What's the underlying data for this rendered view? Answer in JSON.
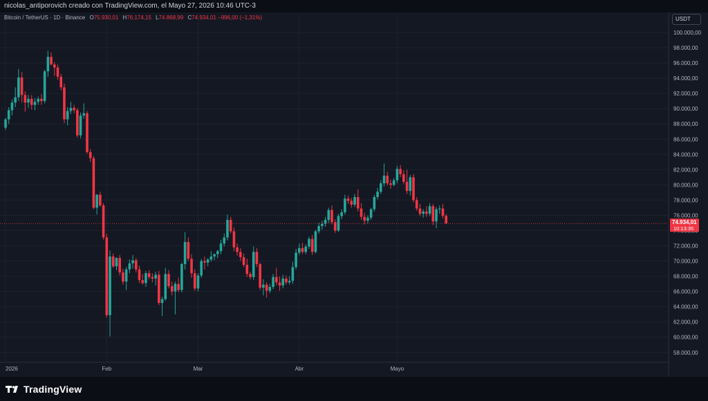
{
  "header": {
    "attribution": "nicolas_antiporovich creado con TradingView.com, el Mayo 27, 2026 10:46 UTC-3"
  },
  "legend": {
    "symbol": "Bitcoin / TetherUS · 1D · Binance",
    "open_label": "O",
    "open": "75.930,01",
    "high_label": "H",
    "high": "76.174,15",
    "low_label": "L",
    "low": "74.868,99",
    "close_label": "C",
    "close": "74.934,01",
    "change": "−996,00 (−1,31%)"
  },
  "currency_button": {
    "label": "USDT"
  },
  "price_tag": {
    "value": "74.934,01",
    "countdown": "10:13:35"
  },
  "footer": {
    "brand": "TradingView"
  },
  "colors": {
    "up": "#26a69a",
    "down": "#f23645",
    "background": "#131722",
    "grid": "#1e222d",
    "axis_text": "#b2b5be"
  },
  "chart_data": {
    "type": "candlestick",
    "symbol": "BTCUSDT",
    "timeframe": "1D",
    "y_axis": {
      "position": "right",
      "ylim": [
        56800,
        101000
      ],
      "ticks": [
        58000,
        60000,
        62000,
        64000,
        66000,
        68000,
        70000,
        72000,
        74000,
        76000,
        78000,
        80000,
        82000,
        84000,
        86000,
        88000,
        90000,
        92000,
        94000,
        96000,
        98000,
        100000
      ],
      "tick_labels": [
        "58.000,00",
        "60.000,00",
        "62.000,00",
        "64.000,00",
        "66.000,00",
        "68.000,00",
        "70.000,00",
        "72.000,00",
        "74.000,00",
        "76.000,00",
        "78.000,00",
        "80.000,00",
        "82.000,00",
        "84.000,00",
        "86.000,00",
        "88.000,00",
        "90.000,00",
        "92.000,00",
        "94.000,00",
        "96.000,00",
        "98.000,00",
        "100.000,00"
      ]
    },
    "x_axis": {
      "tick_labels": [
        {
          "label": "2026",
          "index": 0
        },
        {
          "label": "Feb",
          "index": 31
        },
        {
          "label": "Mar",
          "index": 59
        },
        {
          "label": "Abr",
          "index": 90
        },
        {
          "label": "Mayo",
          "index": 120
        }
      ]
    },
    "grid": true,
    "candles": [
      {
        "o": 87500,
        "h": 88800,
        "l": 87200,
        "c": 88600
      },
      {
        "o": 88600,
        "h": 90200,
        "l": 88000,
        "c": 89800
      },
      {
        "o": 89800,
        "h": 91200,
        "l": 89100,
        "c": 90800
      },
      {
        "o": 90800,
        "h": 92800,
        "l": 90200,
        "c": 91500
      },
      {
        "o": 91500,
        "h": 95200,
        "l": 91000,
        "c": 94100
      },
      {
        "o": 94100,
        "h": 94800,
        "l": 90800,
        "c": 91800
      },
      {
        "o": 91800,
        "h": 92300,
        "l": 89600,
        "c": 90800
      },
      {
        "o": 90800,
        "h": 91800,
        "l": 90100,
        "c": 91300
      },
      {
        "o": 91300,
        "h": 91800,
        "l": 89900,
        "c": 90500
      },
      {
        "o": 90500,
        "h": 91400,
        "l": 89800,
        "c": 90900
      },
      {
        "o": 90900,
        "h": 91600,
        "l": 90500,
        "c": 91300
      },
      {
        "o": 91300,
        "h": 91900,
        "l": 90500,
        "c": 91000
      },
      {
        "o": 91000,
        "h": 95100,
        "l": 90700,
        "c": 94900
      },
      {
        "o": 94900,
        "h": 97600,
        "l": 94200,
        "c": 96800
      },
      {
        "o": 96800,
        "h": 97400,
        "l": 95700,
        "c": 95800
      },
      {
        "o": 95800,
        "h": 96100,
        "l": 94300,
        "c": 95400
      },
      {
        "o": 95400,
        "h": 95800,
        "l": 93800,
        "c": 94200
      },
      {
        "o": 94200,
        "h": 94600,
        "l": 92400,
        "c": 92800
      },
      {
        "o": 92800,
        "h": 93300,
        "l": 88100,
        "c": 88600
      },
      {
        "o": 88600,
        "h": 90200,
        "l": 87800,
        "c": 89700
      },
      {
        "o": 89700,
        "h": 90900,
        "l": 89300,
        "c": 90100
      },
      {
        "o": 90100,
        "h": 90500,
        "l": 89400,
        "c": 89800
      },
      {
        "o": 89800,
        "h": 90100,
        "l": 86200,
        "c": 86500
      },
      {
        "o": 86500,
        "h": 89500,
        "l": 86100,
        "c": 89100
      },
      {
        "o": 89100,
        "h": 90700,
        "l": 88700,
        "c": 89400
      },
      {
        "o": 89400,
        "h": 89700,
        "l": 84100,
        "c": 84300
      },
      {
        "o": 84300,
        "h": 84700,
        "l": 83000,
        "c": 83500
      },
      {
        "o": 83500,
        "h": 83800,
        "l": 76800,
        "c": 77000
      },
      {
        "o": 77000,
        "h": 78800,
        "l": 76100,
        "c": 78700
      },
      {
        "o": 78700,
        "h": 79100,
        "l": 77100,
        "c": 77300
      },
      {
        "o": 77300,
        "h": 77600,
        "l": 72800,
        "c": 73100
      },
      {
        "o": 73100,
        "h": 73600,
        "l": 62600,
        "c": 62900
      },
      {
        "o": 62900,
        "h": 71400,
        "l": 60100,
        "c": 70600
      },
      {
        "o": 70600,
        "h": 71000,
        "l": 69100,
        "c": 69300
      },
      {
        "o": 69300,
        "h": 70500,
        "l": 68800,
        "c": 70400
      },
      {
        "o": 70400,
        "h": 70800,
        "l": 68100,
        "c": 68500
      },
      {
        "o": 68500,
        "h": 69000,
        "l": 66900,
        "c": 67300
      },
      {
        "o": 67300,
        "h": 69200,
        "l": 66200,
        "c": 68900
      },
      {
        "o": 68900,
        "h": 70200,
        "l": 68400,
        "c": 69700
      },
      {
        "o": 69700,
        "h": 70800,
        "l": 69000,
        "c": 70100
      },
      {
        "o": 70100,
        "h": 70400,
        "l": 68500,
        "c": 68900
      },
      {
        "o": 68900,
        "h": 69400,
        "l": 67100,
        "c": 67500
      },
      {
        "o": 67500,
        "h": 68300,
        "l": 66900,
        "c": 67100
      },
      {
        "o": 67100,
        "h": 68700,
        "l": 66600,
        "c": 68400
      },
      {
        "o": 68400,
        "h": 68800,
        "l": 67600,
        "c": 67900
      },
      {
        "o": 67900,
        "h": 68400,
        "l": 67200,
        "c": 67700
      },
      {
        "o": 67700,
        "h": 68600,
        "l": 66800,
        "c": 68200
      },
      {
        "o": 68200,
        "h": 68700,
        "l": 64200,
        "c": 64500
      },
      {
        "o": 64500,
        "h": 65300,
        "l": 62800,
        "c": 65000
      },
      {
        "o": 65000,
        "h": 69100,
        "l": 64800,
        "c": 68300
      },
      {
        "o": 68300,
        "h": 68800,
        "l": 66400,
        "c": 66700
      },
      {
        "o": 66700,
        "h": 67300,
        "l": 65500,
        "c": 66000
      },
      {
        "o": 66000,
        "h": 67300,
        "l": 63000,
        "c": 67000
      },
      {
        "o": 67000,
        "h": 67800,
        "l": 65900,
        "c": 66200
      },
      {
        "o": 66200,
        "h": 69800,
        "l": 65900,
        "c": 69600
      },
      {
        "o": 69600,
        "h": 73800,
        "l": 68900,
        "c": 72500
      },
      {
        "o": 72500,
        "h": 73100,
        "l": 70000,
        "c": 70300
      },
      {
        "o": 70300,
        "h": 70900,
        "l": 67800,
        "c": 68400
      },
      {
        "o": 68400,
        "h": 68900,
        "l": 66100,
        "c": 66400
      },
      {
        "o": 66400,
        "h": 68400,
        "l": 66000,
        "c": 68100
      },
      {
        "o": 68100,
        "h": 70300,
        "l": 67800,
        "c": 70000
      },
      {
        "o": 70000,
        "h": 70600,
        "l": 68900,
        "c": 69800
      },
      {
        "o": 69800,
        "h": 70400,
        "l": 69300,
        "c": 70200
      },
      {
        "o": 70200,
        "h": 71300,
        "l": 69900,
        "c": 70600
      },
      {
        "o": 70600,
        "h": 71000,
        "l": 70100,
        "c": 70900
      },
      {
        "o": 70900,
        "h": 71500,
        "l": 70400,
        "c": 71300
      },
      {
        "o": 71300,
        "h": 72800,
        "l": 70900,
        "c": 72300
      },
      {
        "o": 72300,
        "h": 73600,
        "l": 71900,
        "c": 73100
      },
      {
        "o": 73100,
        "h": 76100,
        "l": 72700,
        "c": 75400
      },
      {
        "o": 75400,
        "h": 75800,
        "l": 73600,
        "c": 73900
      },
      {
        "o": 73900,
        "h": 74400,
        "l": 71300,
        "c": 71800
      },
      {
        "o": 71800,
        "h": 72300,
        "l": 70700,
        "c": 71200
      },
      {
        "o": 71200,
        "h": 71700,
        "l": 70000,
        "c": 70500
      },
      {
        "o": 70500,
        "h": 71000,
        "l": 69200,
        "c": 69500
      },
      {
        "o": 69500,
        "h": 70300,
        "l": 67900,
        "c": 68300
      },
      {
        "o": 68300,
        "h": 68600,
        "l": 67600,
        "c": 67900
      },
      {
        "o": 67900,
        "h": 71900,
        "l": 67500,
        "c": 71200
      },
      {
        "o": 71200,
        "h": 71700,
        "l": 69200,
        "c": 69600
      },
      {
        "o": 69600,
        "h": 69800,
        "l": 66200,
        "c": 66500
      },
      {
        "o": 66500,
        "h": 67600,
        "l": 65500,
        "c": 66900
      },
      {
        "o": 66900,
        "h": 67200,
        "l": 65200,
        "c": 66100
      },
      {
        "o": 66100,
        "h": 67000,
        "l": 65800,
        "c": 66600
      },
      {
        "o": 66600,
        "h": 68300,
        "l": 66300,
        "c": 67900
      },
      {
        "o": 67900,
        "h": 69100,
        "l": 66800,
        "c": 67200
      },
      {
        "o": 67200,
        "h": 68000,
        "l": 66100,
        "c": 66800
      },
      {
        "o": 66800,
        "h": 68200,
        "l": 66400,
        "c": 67700
      },
      {
        "o": 67700,
        "h": 68100,
        "l": 66900,
        "c": 67200
      },
      {
        "o": 67200,
        "h": 68000,
        "l": 66900,
        "c": 67400
      },
      {
        "o": 67400,
        "h": 69900,
        "l": 67000,
        "c": 69200
      },
      {
        "o": 69200,
        "h": 71600,
        "l": 68900,
        "c": 71100
      },
      {
        "o": 71100,
        "h": 72300,
        "l": 70800,
        "c": 71700
      },
      {
        "o": 71700,
        "h": 72400,
        "l": 70900,
        "c": 71200
      },
      {
        "o": 71200,
        "h": 72200,
        "l": 70900,
        "c": 71900
      },
      {
        "o": 71900,
        "h": 73200,
        "l": 71600,
        "c": 72900
      },
      {
        "o": 72900,
        "h": 73400,
        "l": 70800,
        "c": 71200
      },
      {
        "o": 71200,
        "h": 74100,
        "l": 71000,
        "c": 73900
      },
      {
        "o": 73900,
        "h": 75000,
        "l": 73600,
        "c": 74600
      },
      {
        "o": 74600,
        "h": 75300,
        "l": 74100,
        "c": 74900
      },
      {
        "o": 74900,
        "h": 75800,
        "l": 74500,
        "c": 75400
      },
      {
        "o": 75400,
        "h": 77000,
        "l": 75000,
        "c": 76700
      },
      {
        "o": 76700,
        "h": 77300,
        "l": 74800,
        "c": 75100
      },
      {
        "o": 75100,
        "h": 75500,
        "l": 73700,
        "c": 74000
      },
      {
        "o": 74000,
        "h": 76200,
        "l": 73800,
        "c": 75900
      },
      {
        "o": 75900,
        "h": 76800,
        "l": 75500,
        "c": 76400
      },
      {
        "o": 76400,
        "h": 78700,
        "l": 76100,
        "c": 78200
      },
      {
        "o": 78200,
        "h": 78600,
        "l": 77500,
        "c": 77900
      },
      {
        "o": 77900,
        "h": 78300,
        "l": 77000,
        "c": 77400
      },
      {
        "o": 77400,
        "h": 78800,
        "l": 77100,
        "c": 78400
      },
      {
        "o": 78400,
        "h": 79400,
        "l": 76500,
        "c": 76900
      },
      {
        "o": 76900,
        "h": 77600,
        "l": 75400,
        "c": 75800
      },
      {
        "o": 75800,
        "h": 76300,
        "l": 74800,
        "c": 75300
      },
      {
        "o": 75300,
        "h": 76000,
        "l": 74900,
        "c": 75700
      },
      {
        "o": 75700,
        "h": 77000,
        "l": 75400,
        "c": 76800
      },
      {
        "o": 76800,
        "h": 78700,
        "l": 76500,
        "c": 78400
      },
      {
        "o": 78400,
        "h": 79600,
        "l": 78100,
        "c": 79100
      },
      {
        "o": 79100,
        "h": 80600,
        "l": 78800,
        "c": 80200
      },
      {
        "o": 80200,
        "h": 82800,
        "l": 79800,
        "c": 81200
      },
      {
        "o": 81200,
        "h": 81700,
        "l": 79900,
        "c": 80200
      },
      {
        "o": 80200,
        "h": 80700,
        "l": 79500,
        "c": 80000
      },
      {
        "o": 80000,
        "h": 80900,
        "l": 79800,
        "c": 80600
      },
      {
        "o": 80600,
        "h": 82500,
        "l": 80200,
        "c": 82100
      },
      {
        "o": 82100,
        "h": 82600,
        "l": 81000,
        "c": 81400
      },
      {
        "o": 81400,
        "h": 81900,
        "l": 80100,
        "c": 80400
      },
      {
        "o": 80400,
        "h": 82000,
        "l": 78800,
        "c": 79200
      },
      {
        "o": 79200,
        "h": 81300,
        "l": 78600,
        "c": 81000
      },
      {
        "o": 81000,
        "h": 81400,
        "l": 77700,
        "c": 78000
      },
      {
        "o": 78000,
        "h": 78400,
        "l": 76600,
        "c": 76900
      },
      {
        "o": 76900,
        "h": 77500,
        "l": 75900,
        "c": 76200
      },
      {
        "o": 76200,
        "h": 76800,
        "l": 75700,
        "c": 76500
      },
      {
        "o": 76500,
        "h": 77200,
        "l": 75800,
        "c": 76200
      },
      {
        "o": 76200,
        "h": 77600,
        "l": 75900,
        "c": 77200
      },
      {
        "o": 77200,
        "h": 77500,
        "l": 74700,
        "c": 75200
      },
      {
        "o": 75200,
        "h": 77100,
        "l": 74300,
        "c": 76800
      },
      {
        "o": 76800,
        "h": 77300,
        "l": 76200,
        "c": 76900
      },
      {
        "o": 76900,
        "h": 77500,
        "l": 75600,
        "c": 75930
      },
      {
        "o": 75930,
        "h": 76174,
        "l": 74869,
        "c": 74934
      }
    ],
    "last_price": 74934.01
  }
}
